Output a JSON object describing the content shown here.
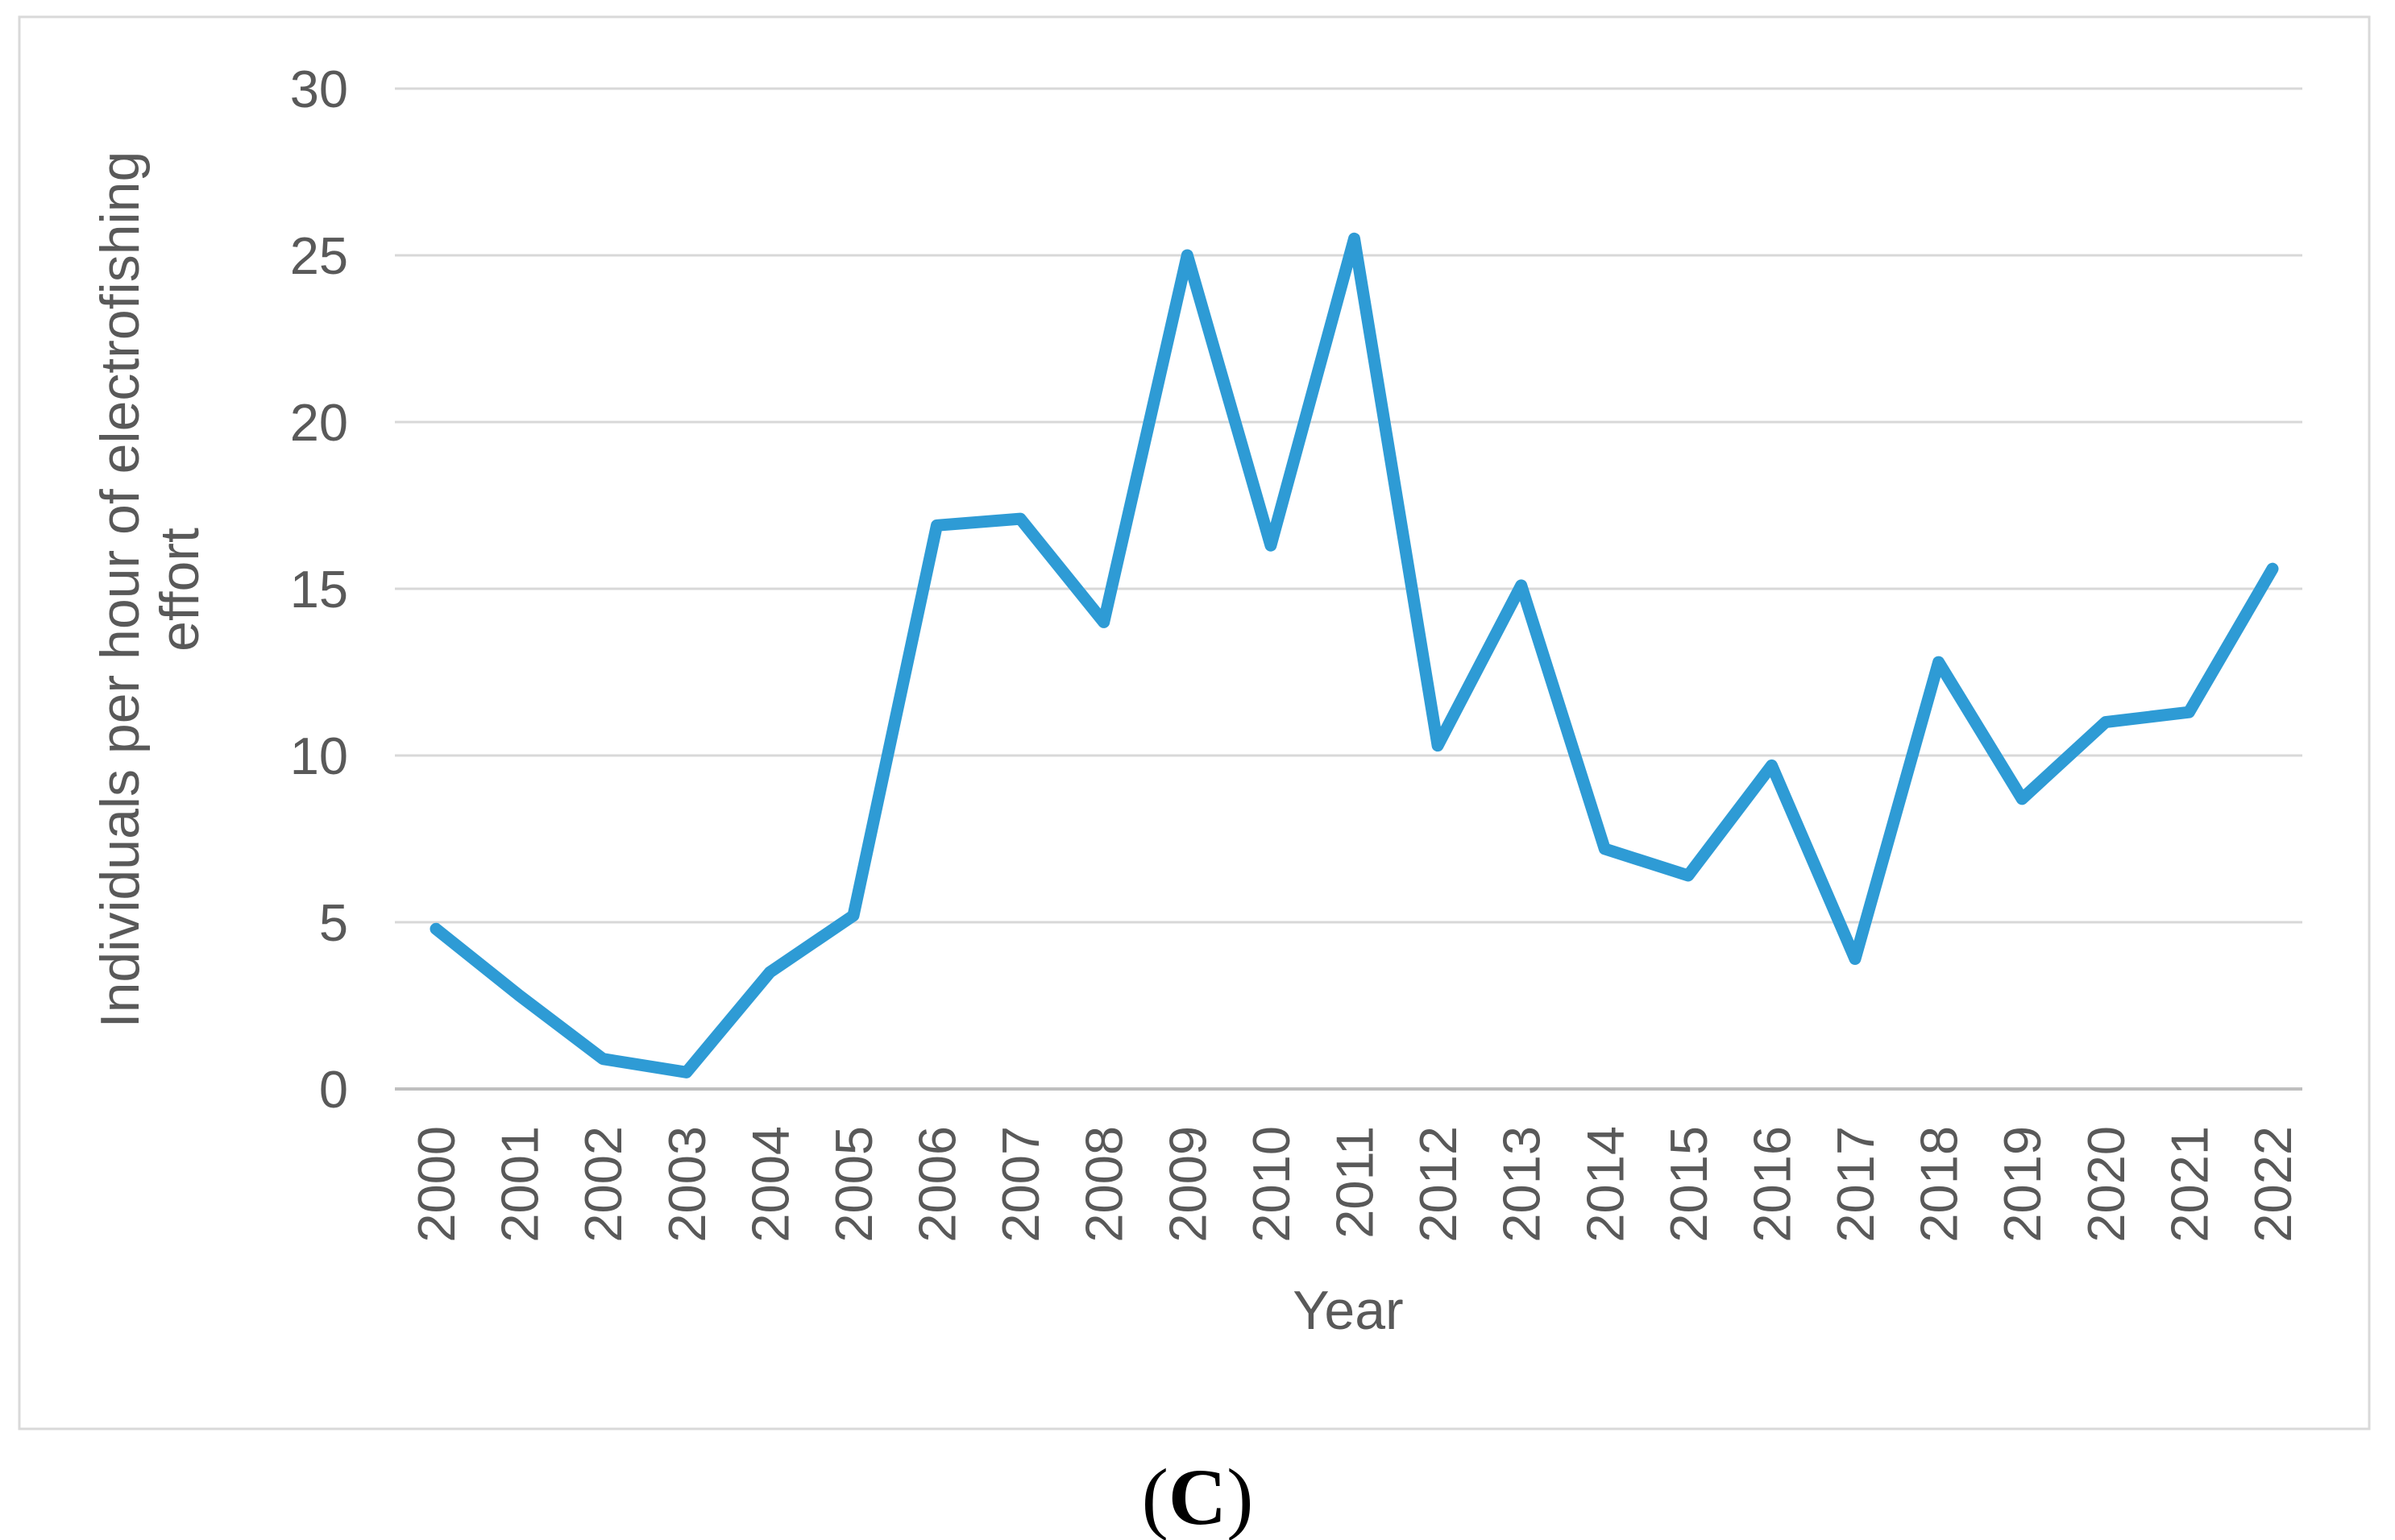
{
  "figure": {
    "caption": {
      "open": "(",
      "letter": "C",
      "close": ")"
    }
  },
  "chart_data": {
    "type": "line",
    "title": "",
    "xlabel": "Year",
    "ylabel": "Individuals per hour of electrofishing effort",
    "ylabel_lines": [
      "Individuals per hour of electrofishing",
      "effort"
    ],
    "categories": [
      2000,
      2001,
      2002,
      2003,
      2004,
      2005,
      2006,
      2007,
      2008,
      2009,
      2010,
      2011,
      2012,
      2013,
      2014,
      2015,
      2016,
      2017,
      2018,
      2019,
      2020,
      2021,
      2022
    ],
    "values": [
      4.8,
      2.8,
      0.9,
      0.5,
      3.5,
      5.2,
      16.9,
      17.1,
      14.0,
      25.0,
      16.3,
      25.5,
      10.3,
      15.1,
      7.2,
      6.4,
      9.7,
      3.9,
      12.8,
      8.7,
      11.0,
      11.3,
      15.6
    ],
    "ylim": [
      0,
      30
    ],
    "yticks": [
      0,
      5,
      10,
      15,
      20,
      25,
      30
    ],
    "grid": true,
    "legend": "none",
    "colors": {
      "line": "#2E9BD5",
      "gridline": "#D8D8D8",
      "axis_line": "#BFBFBF",
      "text": "#595959",
      "border": "#D9D9D9",
      "caption_text": "#000000"
    }
  }
}
